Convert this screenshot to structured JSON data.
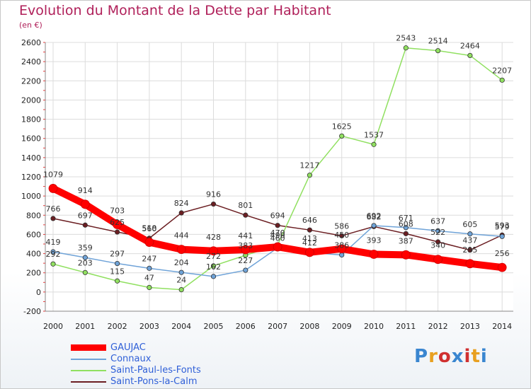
{
  "title": "Evolution du Montant de la Dette par Habitant",
  "subtitle": "(en €)",
  "logo": {
    "text": "Proxiti",
    "colors": [
      "#3a86d0",
      "#e8a020",
      "#d03030",
      "#3a86d0",
      "#d03030",
      "#e8a020",
      "#3a86d0"
    ]
  },
  "chart_data": {
    "type": "line",
    "title": "Evolution du Montant de la Dette par Habitant",
    "subtitle": "(en €)",
    "x": [
      "2000",
      "2001",
      "2002",
      "2003",
      "2004",
      "2005",
      "2006",
      "2007",
      "2008",
      "2009",
      "2010",
      "2011",
      "2012",
      "2013",
      "2014"
    ],
    "ylim": [
      -200,
      2600
    ],
    "yticks": [
      -200,
      0,
      200,
      400,
      600,
      800,
      1000,
      1200,
      1400,
      1600,
      1800,
      2000,
      2200,
      2400,
      2600
    ],
    "grid": true,
    "legend": "bottom-left",
    "series": [
      {
        "name": "GAUJAC",
        "color": "#ff0000",
        "width": 10,
        "values": [
          1079,
          914,
          703,
          518,
          444,
          428,
          441,
          470,
          413,
          450,
          393,
          387,
          340,
          295,
          256
        ]
      },
      {
        "name": "Connaux",
        "color": "#6fa3d8",
        "width": 1.5,
        "values": [
          419,
          359,
          297,
          247,
          204,
          162,
          227,
          460,
          412,
          386,
          692,
          671,
          637,
          605,
          579
        ]
      },
      {
        "name": "Saint-Paul-les-Fonts",
        "color": "#90e060",
        "width": 1.5,
        "values": [
          292,
          203,
          115,
          47,
          24,
          272,
          383,
          490,
          1217,
          1625,
          1537,
          2543,
          2514,
          2464,
          2207
        ]
      },
      {
        "name": "Saint-Pons-la-Calm",
        "color": "#6b1e22",
        "width": 1.5,
        "values": [
          766,
          697,
          625,
          560,
          824,
          916,
          801,
          694,
          646,
          586,
          682,
          608,
          522,
          437,
          593
        ]
      }
    ]
  }
}
